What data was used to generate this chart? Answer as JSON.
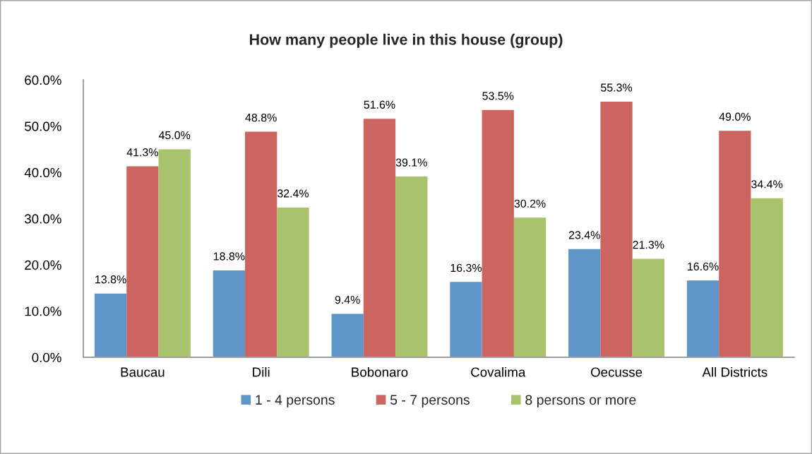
{
  "chart_data": {
    "type": "bar",
    "title": "How many people live in this house (group)",
    "categories": [
      "Baucau",
      "Dili",
      "Bobonaro",
      "Covalima",
      "Oecusse",
      "All Districts"
    ],
    "series": [
      {
        "name": "1 - 4 persons",
        "color": "#5f95c8",
        "values": [
          13.8,
          18.8,
          9.4,
          16.3,
          23.4,
          16.6
        ],
        "value_labels": [
          "13.8%",
          "18.8%",
          "9.4%",
          "16.3%",
          "23.4%",
          "16.6%"
        ]
      },
      {
        "name": "5 - 7 persons",
        "color": "#cc6560",
        "values": [
          41.3,
          48.8,
          51.6,
          53.5,
          55.3,
          49.0
        ],
        "value_labels": [
          "41.3%",
          "48.8%",
          "51.6%",
          "53.5%",
          "55.3%",
          "49.0%"
        ]
      },
      {
        "name": "8 persons or more",
        "color": "#a8c36b",
        "values": [
          45.0,
          32.4,
          39.1,
          30.2,
          21.3,
          34.4
        ],
        "value_labels": [
          "45.0%",
          "32.4%",
          "39.1%",
          "30.2%",
          "21.3%",
          "34.4%"
        ]
      }
    ],
    "ylim": [
      0,
      60
    ],
    "yticks": [
      {
        "value": 0,
        "label": "0.0%"
      },
      {
        "value": 10,
        "label": "10.0%"
      },
      {
        "value": 20,
        "label": "20.0%"
      },
      {
        "value": 30,
        "label": "30.0%"
      },
      {
        "value": 40,
        "label": "40.0%"
      },
      {
        "value": 50,
        "label": "50.0%"
      },
      {
        "value": 60,
        "label": "60.0%"
      }
    ],
    "grid": false,
    "legend": "bottom"
  }
}
